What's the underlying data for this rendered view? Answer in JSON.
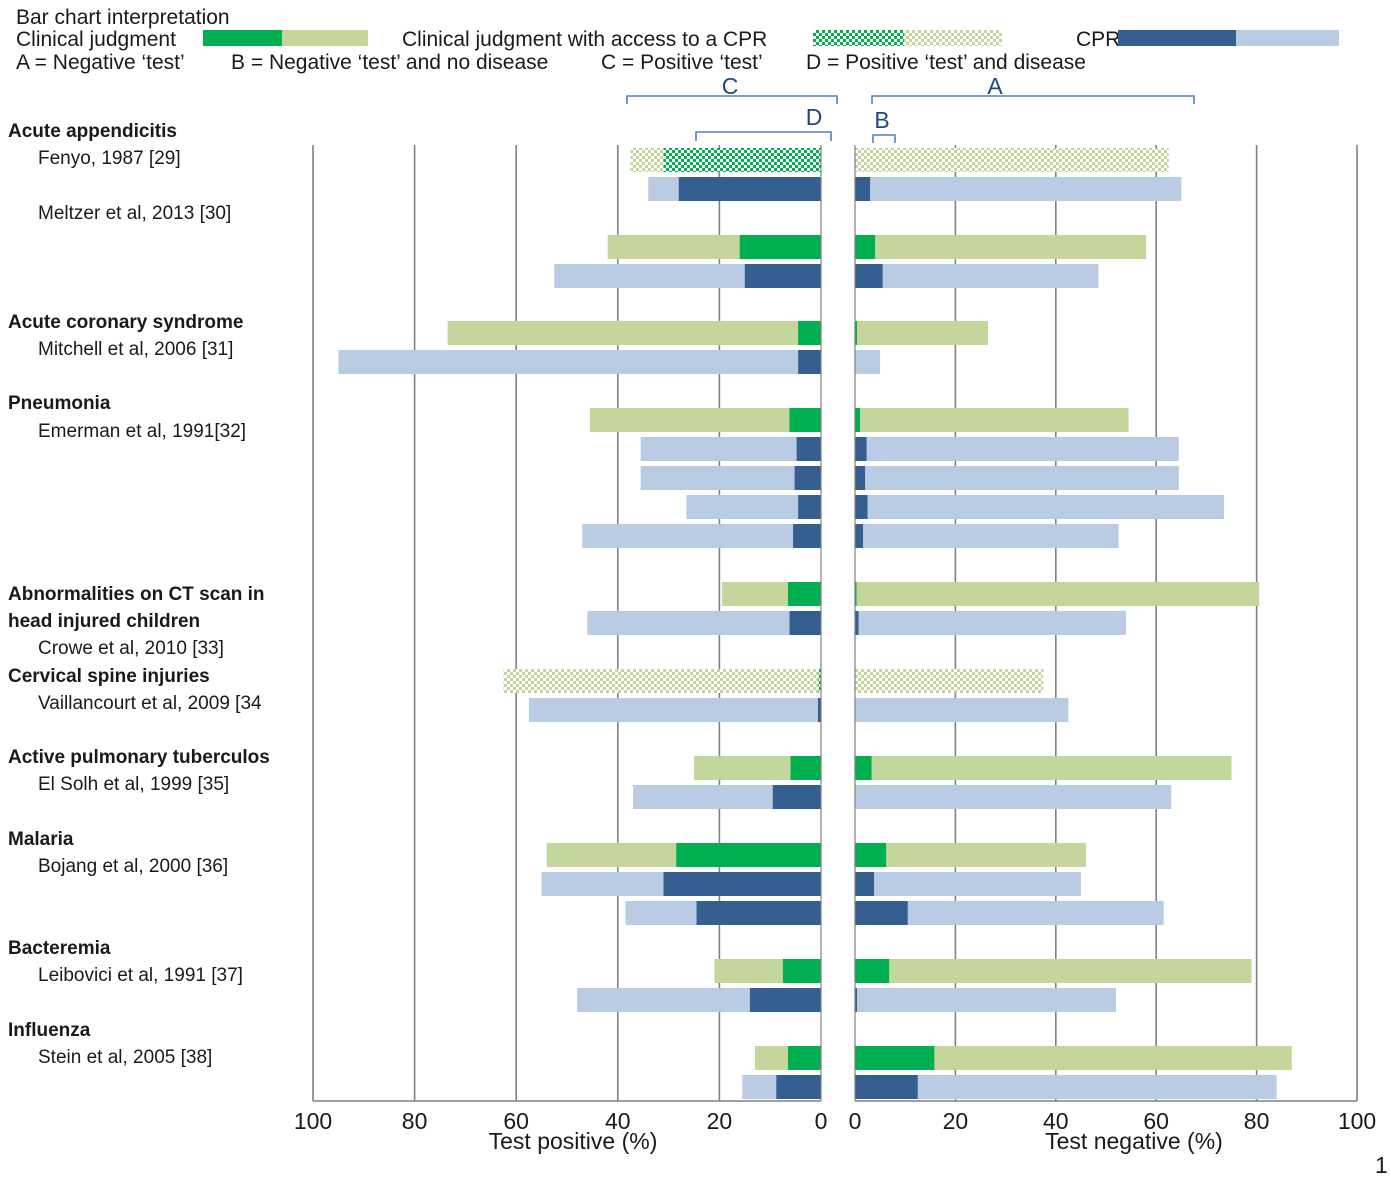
{
  "legend": {
    "title": "Bar chart interpretation",
    "clinical_label": "Clinical judgment",
    "cpr_access_label": "Clinical judgment with access to a CPR",
    "cpr_label": "CPR",
    "def_a": "A = Negative ‘test’",
    "def_b": "B = Negative ‘test’ and no disease",
    "def_c": "C = Positive ‘test’",
    "def_d": "D = Positive ‘test’ and disease"
  },
  "brackets": {
    "a": "A",
    "b": "B",
    "c": "C",
    "d": "D"
  },
  "page_number": "1",
  "colors": {
    "clinical_dark": "#00b050",
    "clinical_light": "#c3d69b",
    "cpr_dark": "#365f91",
    "cpr_light": "#b9cce4",
    "gridline": "#808080"
  },
  "chart_data": {
    "type": "bar",
    "orientation": "horizontal-diverging",
    "xlabel_left": "Test positive (%)",
    "xlabel_right": "Test negative (%)",
    "xlim_left": [
      100,
      0
    ],
    "xlim_right": [
      0,
      100
    ],
    "ticks_left": [
      "100",
      "80",
      "60",
      "40",
      "20",
      "0"
    ],
    "ticks_right": [
      "0",
      "20",
      "40",
      "60",
      "80",
      "100"
    ],
    "grid": true,
    "groups": [
      {
        "heading": [
          "Acute appendicitis"
        ],
        "study": "Fenyo, 1987 [29]"
      },
      {
        "heading": [],
        "study": "Meltzer et al, 2013 [30]"
      },
      {
        "heading": [
          "Acute coronary syndrome"
        ],
        "study": "Mitchell et al, 2006 [31]"
      },
      {
        "heading": [
          "Pneumonia"
        ],
        "study": "Emerman et al, 1991[32]"
      },
      {
        "heading": [
          "Abnormalities on CT scan in",
          "head injured children"
        ],
        "study": "Crowe et al, 2010 [33]"
      },
      {
        "heading": [
          "Cervical spine injuries"
        ],
        "study": "Vaillancourt et al, 2009 [34"
      },
      {
        "heading": [
          "Active pulmonary tuberculos"
        ],
        "study": "El Solh et al, 1999 [35]"
      },
      {
        "heading": [
          "Malaria"
        ],
        "study": "Bojang et al, 2000 [36]"
      },
      {
        "heading": [
          "Bacteremia"
        ],
        "study": "Leibovici et al, 1991 [37]"
      },
      {
        "heading": [
          "Influenza"
        ],
        "study": "Stein et al, 2005 [38]"
      }
    ],
    "rows": [
      {
        "group": 0,
        "kind": "cpr_access",
        "pos_total": 37.5,
        "pos_disease": 31,
        "neg_total": 62.5,
        "neg_no_disease": 0
      },
      {
        "group": 0,
        "kind": "cpr",
        "pos_total": 34,
        "pos_disease": 28,
        "neg_total": 65,
        "neg_no_disease": 3
      },
      {
        "group": 1,
        "kind": "clinical",
        "pos_total": 42,
        "pos_disease": 16,
        "neg_total": 58,
        "neg_no_disease": 4
      },
      {
        "group": 1,
        "kind": "cpr",
        "pos_total": 52.5,
        "pos_disease": 15,
        "neg_total": 48.5,
        "neg_no_disease": 5.5
      },
      {
        "group": 2,
        "kind": "clinical",
        "pos_total": 73.5,
        "pos_disease": 4.5,
        "neg_total": 26.5,
        "neg_no_disease": 0.4
      },
      {
        "group": 2,
        "kind": "cpr",
        "pos_total": 95,
        "pos_disease": 4.5,
        "neg_total": 5,
        "neg_no_disease": 0
      },
      {
        "group": 3,
        "kind": "clinical",
        "pos_total": 45.5,
        "pos_disease": 6.2,
        "neg_total": 54.5,
        "neg_no_disease": 1
      },
      {
        "group": 3,
        "kind": "cpr",
        "pos_total": 35.5,
        "pos_disease": 4.8,
        "neg_total": 64.5,
        "neg_no_disease": 2.3
      },
      {
        "group": 3,
        "kind": "cpr",
        "pos_total": 35.5,
        "pos_disease": 5.2,
        "neg_total": 64.5,
        "neg_no_disease": 2
      },
      {
        "group": 3,
        "kind": "cpr",
        "pos_total": 26.5,
        "pos_disease": 4.5,
        "neg_total": 73.5,
        "neg_no_disease": 2.5
      },
      {
        "group": 3,
        "kind": "cpr",
        "pos_total": 47,
        "pos_disease": 5.5,
        "neg_total": 52.5,
        "neg_no_disease": 1.6
      },
      {
        "group": 4,
        "kind": "clinical",
        "pos_total": 19.5,
        "pos_disease": 6.5,
        "neg_total": 80.5,
        "neg_no_disease": 0.3
      },
      {
        "group": 4,
        "kind": "cpr",
        "pos_total": 46,
        "pos_disease": 6.2,
        "neg_total": 54,
        "neg_no_disease": 0.7
      },
      {
        "group": 5,
        "kind": "cpr_access",
        "pos_total": 62.5,
        "pos_disease": 0.5,
        "neg_total": 37.5,
        "neg_no_disease": 0
      },
      {
        "group": 5,
        "kind": "cpr",
        "pos_total": 57.5,
        "pos_disease": 0.6,
        "neg_total": 42.5,
        "neg_no_disease": 0
      },
      {
        "group": 6,
        "kind": "clinical",
        "pos_total": 25,
        "pos_disease": 6,
        "neg_total": 75,
        "neg_no_disease": 3.3
      },
      {
        "group": 6,
        "kind": "cpr",
        "pos_total": 37,
        "pos_disease": 9.5,
        "neg_total": 63,
        "neg_no_disease": 0
      },
      {
        "group": 7,
        "kind": "clinical",
        "pos_total": 54,
        "pos_disease": 28.5,
        "neg_total": 46,
        "neg_no_disease": 6.2
      },
      {
        "group": 7,
        "kind": "cpr",
        "pos_total": 55,
        "pos_disease": 31,
        "neg_total": 45,
        "neg_no_disease": 3.8
      },
      {
        "group": 7,
        "kind": "cpr",
        "pos_total": 38.5,
        "pos_disease": 24.5,
        "neg_total": 61.5,
        "neg_no_disease": 10.5
      },
      {
        "group": 8,
        "kind": "clinical",
        "pos_total": 21,
        "pos_disease": 7.5,
        "neg_total": 79,
        "neg_no_disease": 6.8
      },
      {
        "group": 8,
        "kind": "cpr",
        "pos_total": 48,
        "pos_disease": 14,
        "neg_total": 52,
        "neg_no_disease": 0.4
      },
      {
        "group": 9,
        "kind": "clinical",
        "pos_total": 13,
        "pos_disease": 6.5,
        "neg_total": 87,
        "neg_no_disease": 15.8
      },
      {
        "group": 9,
        "kind": "cpr",
        "pos_total": 15.5,
        "pos_disease": 8.8,
        "neg_total": 84,
        "neg_no_disease": 12.5
      }
    ]
  }
}
